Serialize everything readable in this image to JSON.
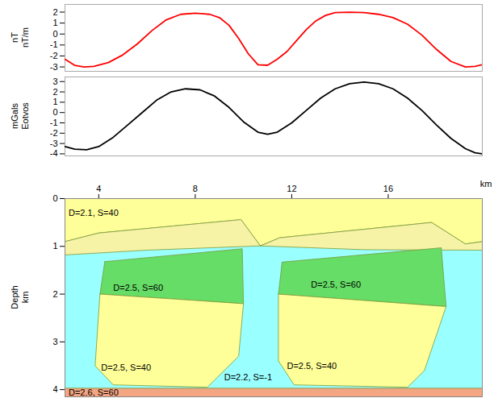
{
  "chart_data": [
    {
      "type": "line",
      "ylabel": [
        "nT",
        "nT/m"
      ],
      "color": "#ff0000",
      "tick_labels": "y",
      "xlim": [
        2.6,
        19.9
      ],
      "ylim": [
        -3.4,
        2.7
      ],
      "yticks": [
        -3,
        -2,
        -1,
        0,
        1,
        2
      ],
      "x": [
        2.6,
        3.0,
        3.4,
        3.8,
        4.4,
        5.0,
        5.6,
        6.2,
        6.8,
        7.4,
        8.0,
        8.6,
        9.0,
        9.4,
        9.8,
        10.2,
        10.6,
        11.0,
        11.4,
        11.8,
        12.2,
        12.6,
        13.0,
        13.4,
        13.8,
        14.4,
        15.0,
        15.6,
        16.2,
        16.8,
        17.4,
        18.0,
        18.6,
        19.2,
        19.6,
        19.9
      ],
      "values": [
        -2.3,
        -2.85,
        -3.0,
        -2.95,
        -2.6,
        -1.9,
        -0.9,
        0.3,
        1.3,
        1.8,
        1.9,
        1.8,
        1.5,
        0.8,
        -0.4,
        -1.8,
        -2.8,
        -2.85,
        -2.3,
        -1.6,
        -0.6,
        0.4,
        1.2,
        1.7,
        1.95,
        2.0,
        1.95,
        1.8,
        1.5,
        0.9,
        -0.1,
        -1.4,
        -2.5,
        -3.0,
        -2.95,
        -2.8
      ]
    },
    {
      "type": "line",
      "ylabel": [
        "mGals",
        "Eotvos"
      ],
      "color": "#000000",
      "tick_labels": "y",
      "xlim": [
        2.6,
        19.9
      ],
      "ylim": [
        -4.2,
        3.45
      ],
      "yticks": [
        -4,
        -3,
        -2,
        -1,
        0,
        1,
        2,
        3
      ],
      "x": [
        2.6,
        3.0,
        3.5,
        4.0,
        4.6,
        5.2,
        5.8,
        6.4,
        7.0,
        7.6,
        8.2,
        8.8,
        9.4,
        10.0,
        10.6,
        11.0,
        11.4,
        12.0,
        12.6,
        13.2,
        13.8,
        14.4,
        15.0,
        15.6,
        16.2,
        16.8,
        17.4,
        18.0,
        18.6,
        19.2,
        19.6,
        19.9
      ],
      "values": [
        -3.3,
        -3.55,
        -3.6,
        -3.3,
        -2.4,
        -1.2,
        0.0,
        1.2,
        2.0,
        2.3,
        2.2,
        1.6,
        0.5,
        -0.9,
        -1.9,
        -2.1,
        -1.9,
        -1.0,
        0.2,
        1.4,
        2.3,
        2.8,
        2.95,
        2.8,
        2.3,
        1.4,
        0.2,
        -1.2,
        -2.5,
        -3.5,
        -3.9,
        -4.0
      ]
    },
    {
      "type": "cross_section",
      "xlabel": "km",
      "ylabel": [
        "Depth",
        "km"
      ],
      "xlim": [
        2.6,
        19.9
      ],
      "xticks": [
        4,
        8,
        12,
        16
      ],
      "ylim": [
        4.15,
        0
      ],
      "yticks": [
        0,
        1,
        2,
        3,
        4
      ],
      "bodies": [
        {
          "label": "D=2.2, S=-1",
          "color": "#99ffff",
          "label_at": [
            9.2,
            3.75
          ],
          "points": [
            [
              2.6,
              0.9
            ],
            [
              19.9,
              0.9
            ],
            [
              19.9,
              4.15
            ],
            [
              2.6,
              4.15
            ]
          ]
        },
        {
          "label": "D=2.6, S=60",
          "color": "#f4a582",
          "label_at": [
            2.75,
            4.06
          ],
          "points": [
            [
              2.6,
              3.97
            ],
            [
              19.9,
              3.97
            ],
            [
              19.9,
              4.15
            ],
            [
              2.6,
              4.15
            ]
          ]
        },
        {
          "label": "D=2.1, S=40",
          "color": "#ffff99",
          "label_at": [
            2.75,
            0.3
          ],
          "points": [
            [
              2.6,
              0
            ],
            [
              19.9,
              0
            ],
            [
              19.9,
              0.9
            ],
            [
              19.2,
              0.95
            ],
            [
              17.8,
              0.5
            ],
            [
              11.5,
              0.82
            ],
            [
              10.7,
              0.99
            ],
            [
              9.9,
              0.44
            ],
            [
              4.0,
              0.72
            ],
            [
              2.6,
              0.9
            ]
          ]
        },
        {
          "color": "#f6f2a6",
          "points": [
            [
              2.6,
              0.9
            ],
            [
              4.0,
              0.72
            ],
            [
              9.9,
              0.44
            ],
            [
              10.7,
              0.99
            ],
            [
              6.0,
              1.08
            ],
            [
              2.6,
              1.18
            ]
          ]
        },
        {
          "color": "#f6f2a6",
          "points": [
            [
              10.7,
              0.99
            ],
            [
              11.5,
              0.82
            ],
            [
              17.8,
              0.5
            ],
            [
              19.2,
              0.95
            ],
            [
              19.9,
              0.9
            ],
            [
              19.9,
              1.08
            ],
            [
              15.0,
              1.07
            ]
          ]
        },
        {
          "label": "D=2.5, S=60",
          "color": "#66dd66",
          "label_at": [
            4.6,
            1.88
          ],
          "points": [
            [
              4.25,
              1.32
            ],
            [
              9.95,
              1.05
            ],
            [
              10.0,
              2.2
            ],
            [
              4.05,
              2.0
            ]
          ]
        },
        {
          "label": "D=2.5, S=40",
          "color": "#ffff99",
          "label_at": [
            4.1,
            3.55
          ],
          "points": [
            [
              4.05,
              2.0
            ],
            [
              10.0,
              2.2
            ],
            [
              9.8,
              3.3
            ],
            [
              8.8,
              3.8
            ],
            [
              8.5,
              3.95
            ],
            [
              4.6,
              3.9
            ],
            [
              3.85,
              3.5
            ]
          ]
        },
        {
          "label": "D=2.5, S=60",
          "color": "#66dd66",
          "label_at": [
            12.8,
            1.8
          ],
          "points": [
            [
              11.6,
              1.33
            ],
            [
              18.2,
              1.03
            ],
            [
              18.4,
              2.26
            ],
            [
              11.45,
              2.0
            ]
          ]
        },
        {
          "label": "D=2.5, S=40",
          "color": "#ffff99",
          "label_at": [
            11.8,
            3.5
          ],
          "points": [
            [
              11.45,
              2.0
            ],
            [
              18.4,
              2.26
            ],
            [
              17.5,
              3.6
            ],
            [
              16.8,
              3.95
            ],
            [
              12.1,
              3.9
            ],
            [
              11.45,
              3.4
            ]
          ]
        }
      ]
    }
  ]
}
